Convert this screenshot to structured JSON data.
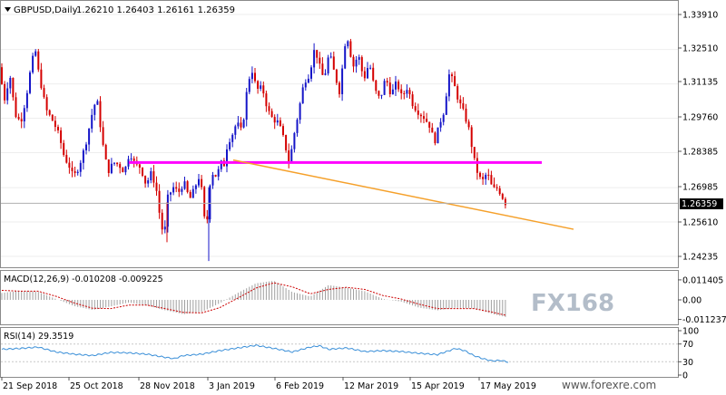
{
  "header": {
    "symbol": "GBPUSD,Daily",
    "ohlc": "1.26210 1.26403 1.26161 1.26359"
  },
  "price_axis": {
    "ticks": [
      "1.33910",
      "1.32510",
      "1.31135",
      "1.29760",
      "1.28385",
      "1.26985",
      "1.25610",
      "1.24235"
    ],
    "current_price": "1.26359"
  },
  "macd": {
    "label": "MACD(12,26,9) -0.010208 -0.009225",
    "ticks": [
      "0.011405",
      "0.00",
      "-0.011237"
    ],
    "watermark": "FX168"
  },
  "rsi": {
    "label": "RSI(14) 29.3519",
    "ticks": [
      "100",
      "70",
      "30",
      "0"
    ]
  },
  "time_axis": {
    "labels": [
      "21 Sep 2018",
      "25 Oct 2018",
      "28 Nov 2018",
      "3 Jan 2019",
      "6 Feb 2019",
      "12 Mar 2019",
      "15 Apr 2019",
      "17 May 2019"
    ]
  },
  "footer": {
    "site": "www.forexre.com"
  },
  "colors": {
    "bull": "#1515c8",
    "bear": "#d40000",
    "magenta_line": "#ff00ff",
    "trend_line": "#f5a02a",
    "rsi_line": "#3a8fd8",
    "signal_line": "#cc0000"
  },
  "chart_data": {
    "type": "candlestick",
    "title": "GBPUSD,Daily",
    "x_labels": [
      "21 Sep 2018",
      "25 Oct 2018",
      "28 Nov 2018",
      "3 Jan 2019",
      "6 Feb 2019",
      "12 Mar 2019",
      "15 Apr 2019",
      "17 May 2019"
    ],
    "ylim": [
      1.2405,
      1.341
    ],
    "path": [
      [
        0,
        1.318
      ],
      [
        6,
        1.305
      ],
      [
        12,
        1.315
      ],
      [
        18,
        1.299
      ],
      [
        24,
        1.296
      ],
      [
        30,
        1.306
      ],
      [
        36,
        1.32
      ],
      [
        40,
        1.325
      ],
      [
        44,
        1.315
      ],
      [
        52,
        1.301
      ],
      [
        60,
        1.296
      ],
      [
        66,
        1.291
      ],
      [
        72,
        1.282
      ],
      [
        78,
        1.278
      ],
      [
        82,
        1.274
      ],
      [
        88,
        1.278
      ],
      [
        96,
        1.288
      ],
      [
        104,
        1.302
      ],
      [
        108,
        1.305
      ],
      [
        114,
        1.288
      ],
      [
        120,
        1.276
      ],
      [
        126,
        1.28
      ],
      [
        132,
        1.279
      ],
      [
        138,
        1.276
      ],
      [
        144,
        1.284
      ],
      [
        150,
        1.279
      ],
      [
        156,
        1.278
      ],
      [
        162,
        1.271
      ],
      [
        168,
        1.276
      ],
      [
        174,
        1.268
      ],
      [
        178,
        1.256
      ],
      [
        182,
        1.25
      ],
      [
        186,
        1.266
      ],
      [
        192,
        1.27
      ],
      [
        198,
        1.268
      ],
      [
        204,
        1.272
      ],
      [
        210,
        1.265
      ],
      [
        216,
        1.27
      ],
      [
        220,
        1.274
      ],
      [
        224,
        1.268
      ],
      [
        228,
        1.25
      ],
      [
        232,
        1.271
      ],
      [
        236,
        1.276
      ],
      [
        240,
        1.274
      ],
      [
        244,
        1.28
      ],
      [
        248,
        1.279
      ],
      [
        252,
        1.288
      ],
      [
        256,
        1.29
      ],
      [
        262,
        1.296
      ],
      [
        268,
        1.292
      ],
      [
        272,
        1.306
      ],
      [
        278,
        1.318
      ],
      [
        284,
        1.309
      ],
      [
        290,
        1.31
      ],
      [
        296,
        1.301
      ],
      [
        302,
        1.297
      ],
      [
        308,
        1.296
      ],
      [
        314,
        1.289
      ],
      [
        320,
        1.279
      ],
      [
        324,
        1.289
      ],
      [
        330,
        1.3
      ],
      [
        336,
        1.312
      ],
      [
        342,
        1.315
      ],
      [
        348,
        1.326
      ],
      [
        352,
        1.32
      ],
      [
        358,
        1.313
      ],
      [
        364,
        1.324
      ],
      [
        370,
        1.315
      ],
      [
        376,
        1.307
      ],
      [
        380,
        1.326
      ],
      [
        384,
        1.33
      ],
      [
        390,
        1.318
      ],
      [
        396,
        1.323
      ],
      [
        402,
        1.313
      ],
      [
        408,
        1.32
      ],
      [
        414,
        1.309
      ],
      [
        420,
        1.305
      ],
      [
        426,
        1.314
      ],
      [
        432,
        1.307
      ],
      [
        438,
        1.312
      ],
      [
        444,
        1.306
      ],
      [
        450,
        1.31
      ],
      [
        456,
        1.303
      ],
      [
        462,
        1.3
      ],
      [
        468,
        1.298
      ],
      [
        474,
        1.295
      ],
      [
        480,
        1.288
      ],
      [
        486,
        1.296
      ],
      [
        490,
        1.3
      ],
      [
        496,
        1.315
      ],
      [
        500,
        1.313
      ],
      [
        506,
        1.305
      ],
      [
        512,
        1.3
      ],
      [
        518,
        1.293
      ],
      [
        522,
        1.284
      ],
      [
        526,
        1.277
      ],
      [
        532,
        1.272
      ],
      [
        538,
        1.276
      ],
      [
        544,
        1.269
      ],
      [
        548,
        1.27
      ],
      [
        552,
        1.268
      ],
      [
        558,
        1.2636
      ]
    ],
    "horizontal_level": 1.2799,
    "trendline": [
      [
        1.2809
      ],
      [
        1.2532
      ]
    ]
  },
  "macd_data": {
    "ylim": [
      -0.0125,
      0.0125
    ],
    "hist": [
      [
        0,
        0.004
      ],
      [
        20,
        0.0052
      ],
      [
        40,
        0.0047
      ],
      [
        60,
        0.0005
      ],
      [
        80,
        -0.0036
      ],
      [
        100,
        -0.0058
      ],
      [
        120,
        -0.0038
      ],
      [
        140,
        -0.0015
      ],
      [
        160,
        -0.0032
      ],
      [
        180,
        -0.006
      ],
      [
        200,
        -0.0082
      ],
      [
        220,
        -0.007
      ],
      [
        240,
        -0.002
      ],
      [
        260,
        0.004
      ],
      [
        280,
        0.0095
      ],
      [
        300,
        0.011
      ],
      [
        320,
        0.0045
      ],
      [
        340,
        0.002
      ],
      [
        360,
        0.0085
      ],
      [
        380,
        0.007
      ],
      [
        400,
        0.005
      ],
      [
        420,
        0.0005
      ],
      [
        440,
        -0.001
      ],
      [
        460,
        -0.0045
      ],
      [
        480,
        -0.006
      ],
      [
        500,
        -0.0045
      ],
      [
        520,
        -0.005
      ],
      [
        540,
        -0.008
      ],
      [
        558,
        -0.0102
      ]
    ],
    "signal": [
      [
        0,
        0.0055
      ],
      [
        20,
        0.005
      ],
      [
        40,
        0.005
      ],
      [
        60,
        0.002
      ],
      [
        80,
        -0.0018
      ],
      [
        100,
        -0.0048
      ],
      [
        120,
        -0.005
      ],
      [
        140,
        -0.003
      ],
      [
        160,
        -0.003
      ],
      [
        180,
        -0.005
      ],
      [
        200,
        -0.0072
      ],
      [
        220,
        -0.0075
      ],
      [
        240,
        -0.0045
      ],
      [
        260,
        0.001
      ],
      [
        280,
        0.0068
      ],
      [
        300,
        0.0098
      ],
      [
        320,
        0.0075
      ],
      [
        340,
        0.0035
      ],
      [
        360,
        0.006
      ],
      [
        380,
        0.0072
      ],
      [
        400,
        0.006
      ],
      [
        420,
        0.0025
      ],
      [
        440,
        0.0005
      ],
      [
        460,
        -0.0025
      ],
      [
        480,
        -0.005
      ],
      [
        500,
        -0.005
      ],
      [
        520,
        -0.005
      ],
      [
        540,
        -0.007
      ],
      [
        558,
        -0.0092
      ]
    ]
  },
  "rsi_data": {
    "ylim": [
      0,
      100
    ],
    "values": [
      [
        0,
        58
      ],
      [
        20,
        60
      ],
      [
        40,
        63
      ],
      [
        60,
        52
      ],
      [
        80,
        47
      ],
      [
        100,
        44
      ],
      [
        120,
        51
      ],
      [
        140,
        50
      ],
      [
        160,
        47
      ],
      [
        180,
        40
      ],
      [
        190,
        37
      ],
      [
        200,
        44
      ],
      [
        220,
        47
      ],
      [
        240,
        55
      ],
      [
        260,
        61
      ],
      [
        280,
        67
      ],
      [
        300,
        60
      ],
      [
        320,
        52
      ],
      [
        340,
        63
      ],
      [
        350,
        66
      ],
      [
        360,
        58
      ],
      [
        380,
        61
      ],
      [
        400,
        53
      ],
      [
        420,
        55
      ],
      [
        440,
        53
      ],
      [
        460,
        49
      ],
      [
        480,
        46
      ],
      [
        500,
        60
      ],
      [
        510,
        55
      ],
      [
        520,
        44
      ],
      [
        530,
        37
      ],
      [
        540,
        32
      ],
      [
        550,
        33
      ],
      [
        558,
        29.35
      ]
    ]
  }
}
